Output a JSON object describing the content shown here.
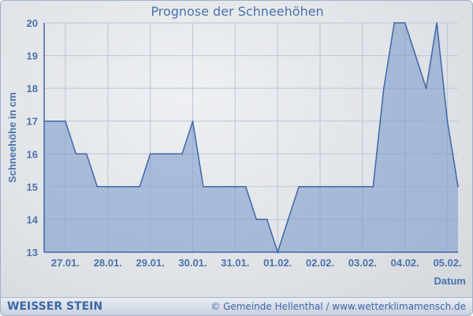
{
  "chart_data": {
    "type": "area",
    "title": "Prognose der Schneehöhen",
    "xlabel": "Datum",
    "ylabel": "Schneehöhe in cm",
    "ylim": [
      13,
      20
    ],
    "yticks": [
      13,
      14,
      15,
      16,
      17,
      18,
      19,
      20
    ],
    "grid": true,
    "x": [
      "26.01. 12:00",
      "26.01. 18:00",
      "27.01. 00:00",
      "27.01. 06:00",
      "27.01. 12:00",
      "27.01. 18:00",
      "28.01. 00:00",
      "28.01. 06:00",
      "28.01. 12:00",
      "28.01. 18:00",
      "29.01. 00:00",
      "29.01. 06:00",
      "29.01. 12:00",
      "29.01. 18:00",
      "30.01. 00:00",
      "30.01. 06:00",
      "30.01. 12:00",
      "30.01. 18:00",
      "31.01. 00:00",
      "31.01. 06:00",
      "31.01. 12:00",
      "31.01. 18:00",
      "01.02. 00:00",
      "01.02. 06:00",
      "01.02. 12:00",
      "01.02. 18:00",
      "02.02. 00:00",
      "02.02. 06:00",
      "02.02. 12:00",
      "02.02. 18:00",
      "03.02. 00:00",
      "03.02. 06:00",
      "03.02. 12:00",
      "03.02. 18:00",
      "04.02. 00:00",
      "04.02. 06:00",
      "04.02. 12:00",
      "04.02. 18:00",
      "05.02. 00:00",
      "05.02. 06:00"
    ],
    "values": [
      17,
      17,
      17,
      16,
      16,
      15,
      15,
      15,
      15,
      15,
      16,
      16,
      16,
      16,
      17,
      15,
      15,
      15,
      15,
      15,
      14,
      14,
      13,
      14,
      15,
      15,
      15,
      15,
      15,
      15,
      15,
      15,
      18,
      20,
      20,
      19,
      18,
      20,
      17,
      15
    ],
    "xtick_labels": [
      "27.01.",
      "28.01.",
      "29.01.",
      "30.01.",
      "31.01.",
      "01.02.",
      "02.02.",
      "03.02.",
      "04.02.",
      "05.02."
    ],
    "colors": {
      "fill": "#7f9ccb",
      "line": "#3f66a8",
      "text": "#4a72ad",
      "grid": "#b9c6da"
    }
  },
  "footer": {
    "brand": "WEISSER STEIN",
    "copyright": "© Gemeinde Hellenthal / www.wetterklimamensch.de"
  }
}
